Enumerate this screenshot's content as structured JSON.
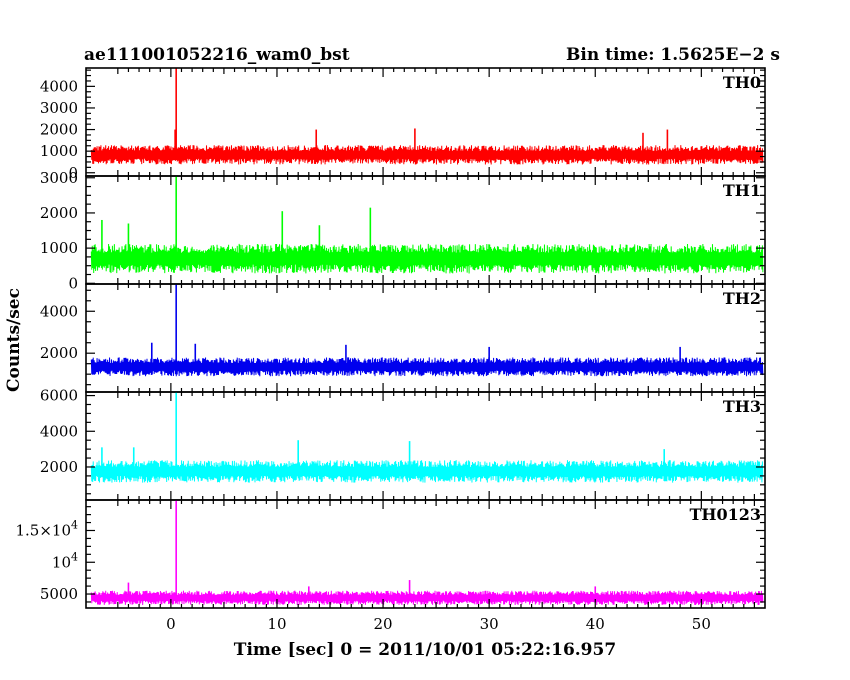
{
  "header": {
    "title": "ae111001052216_wam0_bst",
    "bin_time": "Bin time: 1.5625E−2 s"
  },
  "chart_data": {
    "type": "line",
    "title": "ae111001052216_wam0_bst",
    "xlabel": "Time [sec] 0 = 2011/10/01 05:22:16.957",
    "ylabel": "Counts/sec",
    "xlim": [
      -8,
      56
    ],
    "x_ticks": [
      {
        "v": 0,
        "t": "0"
      },
      {
        "v": 10,
        "t": "10"
      },
      {
        "v": 20,
        "t": "20"
      },
      {
        "v": 30,
        "t": "30"
      },
      {
        "v": 40,
        "t": "40"
      },
      {
        "v": 50,
        "t": "50"
      }
    ],
    "data_start": -7.5,
    "data_end": 55.8,
    "panels": [
      {
        "name": "TH0",
        "color": "#ff0000",
        "ylim": [
          -150,
          4850
        ],
        "y_ticks": [
          {
            "v": 0,
            "t": "0"
          },
          {
            "v": 1000,
            "t": "1000"
          },
          {
            "v": 2000,
            "t": "2000"
          },
          {
            "v": 3000,
            "t": "3000"
          },
          {
            "v": 4000,
            "t": "4000"
          }
        ],
        "baseline": 830,
        "noise": 300,
        "spikes": [
          {
            "x": 0.5,
            "y": 4850
          },
          {
            "x": 13.7,
            "y": 2000
          },
          {
            "x": 23.0,
            "y": 2050
          },
          {
            "x": 44.5,
            "y": 1850
          },
          {
            "x": 46.8,
            "y": 2000
          },
          {
            "x": 0.4,
            "y": 2000
          }
        ]
      },
      {
        "name": "TH1",
        "color": "#00ff00",
        "ylim": [
          -20,
          3050
        ],
        "y_ticks": [
          {
            "v": 0,
            "t": "0"
          },
          {
            "v": 1000,
            "t": "1000"
          },
          {
            "v": 2000,
            "t": "2000"
          },
          {
            "v": 3000,
            "t": "3000"
          }
        ],
        "baseline": 700,
        "noise": 280,
        "spikes": [
          {
            "x": 0.5,
            "y": 3050
          },
          {
            "x": -6.5,
            "y": 1800
          },
          {
            "x": 10.5,
            "y": 2050
          },
          {
            "x": 18.8,
            "y": 2150
          },
          {
            "x": 14.0,
            "y": 1650
          },
          {
            "x": -4.0,
            "y": 1700
          }
        ]
      },
      {
        "name": "TH2",
        "color": "#0000ee",
        "ylim": [
          150,
          5300
        ],
        "y_ticks": [
          {
            "v": 2000,
            "t": "2000"
          },
          {
            "v": 4000,
            "t": "4000"
          }
        ],
        "baseline": 1350,
        "noise": 300,
        "spikes": [
          {
            "x": 0.5,
            "y": 5300
          },
          {
            "x": -1.8,
            "y": 2500
          },
          {
            "x": 2.3,
            "y": 2450
          },
          {
            "x": 16.5,
            "y": 2400
          },
          {
            "x": 30.0,
            "y": 2300
          },
          {
            "x": 48.0,
            "y": 2300
          }
        ]
      },
      {
        "name": "TH3",
        "color": "#00ffff",
        "ylim": [
          150,
          6200
        ],
        "y_ticks": [
          {
            "v": 2000,
            "t": "2000"
          },
          {
            "v": 4000,
            "t": "4000"
          },
          {
            "v": 6000,
            "t": "6000"
          }
        ],
        "baseline": 1750,
        "noise": 420,
        "spikes": [
          {
            "x": 0.5,
            "y": 6200
          },
          {
            "x": -6.5,
            "y": 3100
          },
          {
            "x": 12.0,
            "y": 3500
          },
          {
            "x": 22.5,
            "y": 3450
          },
          {
            "x": 46.5,
            "y": 3000
          },
          {
            "x": -3.5,
            "y": 3100
          }
        ]
      },
      {
        "name": "TH0123",
        "color": "#ff00ff",
        "ylim": [
          2800,
          19800
        ],
        "y_ticks": [
          {
            "v": 5000,
            "t": "5000",
            "tex": false
          },
          {
            "v": 10000,
            "t": "10",
            "exp": "4",
            "tex": true
          },
          {
            "v": 15000,
            "t": "1.5×10",
            "exp": "4",
            "tex": true
          }
        ],
        "baseline": 4400,
        "noise": 750,
        "spikes": [
          {
            "x": 0.5,
            "y": 19800
          },
          {
            "x": -4.0,
            "y": 6800
          },
          {
            "x": 22.5,
            "y": 7200
          },
          {
            "x": 13.0,
            "y": 6200
          },
          {
            "x": 40.0,
            "y": 6200
          }
        ]
      }
    ]
  }
}
